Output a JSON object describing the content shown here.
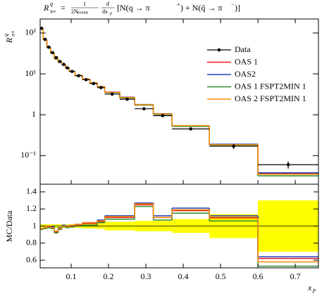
{
  "chart_data": {
    "type": "histogram-ratio",
    "title_parts": [
      "R",
      "q",
      "π+",
      "=",
      "1",
      "2N",
      "events",
      "d",
      "dx",
      "p",
      "[N(q → π",
      "+",
      ") + N(q̄ → π",
      "−",
      ")]"
    ],
    "ylabel_parts": [
      "R",
      "q",
      "π+"
    ],
    "ratio_ylabel": "MC/Data",
    "xlabel_parts": [
      "x",
      "p"
    ],
    "bins": [
      0.017,
      0.025,
      0.035,
      0.045,
      0.055,
      0.065,
      0.075,
      0.085,
      0.095,
      0.11,
      0.13,
      0.15,
      0.17,
      0.19,
      0.23,
      0.27,
      0.32,
      0.37,
      0.47,
      0.6,
      0.762
    ],
    "xlim": [
      0.017,
      0.762
    ],
    "xticks": [
      0.1,
      0.2,
      0.3,
      0.4,
      0.5,
      0.6,
      0.7
    ],
    "ylim": [
      0.02,
      220
    ],
    "log_y": true,
    "yticks": [
      {
        "value": 100,
        "label": "10²"
      },
      {
        "value": 10,
        "label": "10¹"
      },
      1,
      {
        "value": 0.1,
        "label": "10⁻¹"
      }
    ],
    "ratio_ylim": [
      0.51,
      1.49
    ],
    "ratio_yticks": [
      0.6,
      0.8,
      1,
      1.2,
      1.4
    ],
    "band_color": "#ffff00",
    "data": {
      "name": "Data",
      "color": "#000000",
      "values": [
        130,
        70,
        45,
        33,
        25,
        20,
        17,
        14,
        11.5,
        9,
        7.2,
        5.8,
        4.6,
        3.2,
        2.4,
        1.4,
        0.95,
        0.45,
        0.17,
        0.06
      ],
      "errors": [
        2.6,
        1.4,
        0.9,
        0.66,
        0.5,
        0.4,
        0.34,
        0.28,
        0.23,
        0.2,
        0.2,
        0.17,
        0.15,
        0.16,
        0.12,
        0.08,
        0.06,
        0.036,
        0.024,
        0.012
      ],
      "ratio_errors": [
        0.02,
        0.02,
        0.02,
        0.02,
        0.02,
        0.02,
        0.02,
        0.02,
        0.02,
        0.022,
        0.028,
        0.03,
        0.033,
        0.05,
        0.05,
        0.06,
        0.06,
        0.08,
        0.14,
        0.3
      ]
    },
    "series": [
      {
        "name": "OAS 1",
        "color": "#e41a1c",
        "values": [
          126,
          69,
          44.5,
          32.3,
          23.3,
          19.4,
          17,
          13.9,
          11.5,
          9.1,
          7.4,
          6.0,
          4.8,
          3.5,
          2.6,
          1.75,
          1.05,
          0.53,
          0.187,
          0.037
        ],
        "ratio": [
          0.97,
          0.98,
          0.99,
          0.98,
          0.93,
          0.97,
          1.0,
          0.99,
          1.0,
          1.01,
          1.03,
          1.03,
          1.05,
          1.1,
          1.1,
          1.25,
          1.1,
          1.18,
          1.1,
          0.62
        ]
      },
      {
        "name": "OAS2",
        "color": "#2040c0",
        "values": [
          126,
          69,
          45,
          32.7,
          23.5,
          19.6,
          17.2,
          14,
          11.6,
          9.2,
          7.5,
          6.0,
          4.9,
          3.6,
          2.7,
          1.78,
          1.06,
          0.54,
          0.19,
          0.038
        ],
        "ratio": [
          0.97,
          0.98,
          1.0,
          0.99,
          0.94,
          0.98,
          1.01,
          1.0,
          1.01,
          1.02,
          1.04,
          1.04,
          1.07,
          1.12,
          1.12,
          1.27,
          1.12,
          1.21,
          1.12,
          0.64
        ]
      },
      {
        "name": "OAS 1 FSPT2MIN 1",
        "color": "#2e8b2e",
        "values": [
          125,
          68,
          44,
          32,
          23,
          19.2,
          16.8,
          13.7,
          11.4,
          9,
          7.3,
          5.9,
          4.8,
          3.5,
          2.6,
          1.72,
          1.02,
          0.52,
          0.18,
          0.032
        ],
        "ratio": [
          0.96,
          0.97,
          0.98,
          0.97,
          0.92,
          0.96,
          0.99,
          0.98,
          0.99,
          1.0,
          1.01,
          1.01,
          1.04,
          1.08,
          1.08,
          1.23,
          1.07,
          1.15,
          1.06,
          0.53
        ]
      },
      {
        "name": "OAS 2 FSPT2MIN 1",
        "color": "#ff8c00",
        "values": [
          126,
          69,
          45,
          32.3,
          23.5,
          19.4,
          17,
          13.9,
          11.6,
          9.2,
          7.5,
          6.0,
          4.9,
          3.55,
          2.66,
          1.76,
          1.05,
          0.54,
          0.185,
          0.035
        ],
        "ratio": [
          0.97,
          0.98,
          1.0,
          0.98,
          0.94,
          0.97,
          1.0,
          0.99,
          1.01,
          1.02,
          1.04,
          1.04,
          1.06,
          1.11,
          1.11,
          1.26,
          1.1,
          1.19,
          1.09,
          0.58
        ]
      }
    ]
  }
}
